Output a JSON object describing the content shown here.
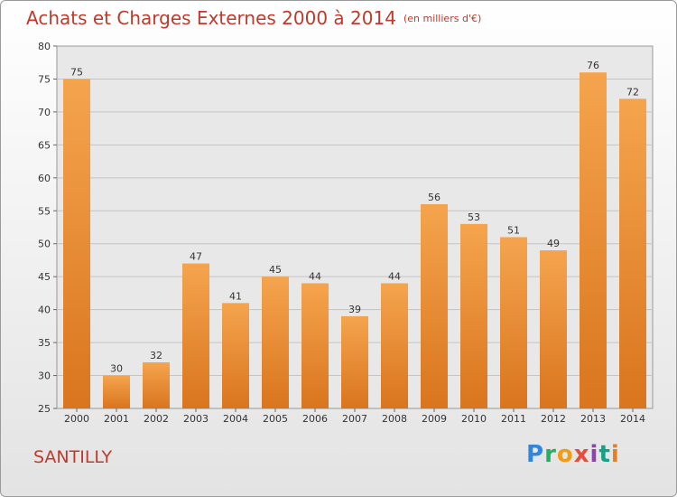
{
  "header": {
    "title": "Achats et Charges Externes 2000 à 2014",
    "unit": "(en milliers d'€)"
  },
  "footer": {
    "city": "SANTILLY",
    "logo": [
      {
        "char": "P",
        "color": "#2e86de"
      },
      {
        "char": "r",
        "color": "#27ae60"
      },
      {
        "char": "o",
        "color": "#f39c12"
      },
      {
        "char": "x",
        "color": "#e74c3c"
      },
      {
        "char": "i",
        "color": "#8e44ad"
      },
      {
        "char": "t",
        "color": "#16a085"
      },
      {
        "char": "i",
        "color": "#e67e22"
      }
    ]
  },
  "chart_data": {
    "type": "bar",
    "title": "Achats et Charges Externes 2000 à 2014",
    "categories": [
      "2000",
      "2001",
      "2002",
      "2003",
      "2004",
      "2005",
      "2006",
      "2007",
      "2008",
      "2009",
      "2010",
      "2011",
      "2012",
      "2013",
      "2014"
    ],
    "values": [
      75,
      30,
      32,
      47,
      41,
      45,
      44,
      39,
      44,
      56,
      53,
      51,
      49,
      76,
      72
    ],
    "ylim": [
      25,
      80
    ],
    "yticks": [
      25,
      30,
      35,
      40,
      45,
      50,
      55,
      60,
      65,
      70,
      75,
      80
    ],
    "grid": true,
    "bar_color_top": "#f5a44e",
    "bar_color_bottom": "#d9751e"
  }
}
